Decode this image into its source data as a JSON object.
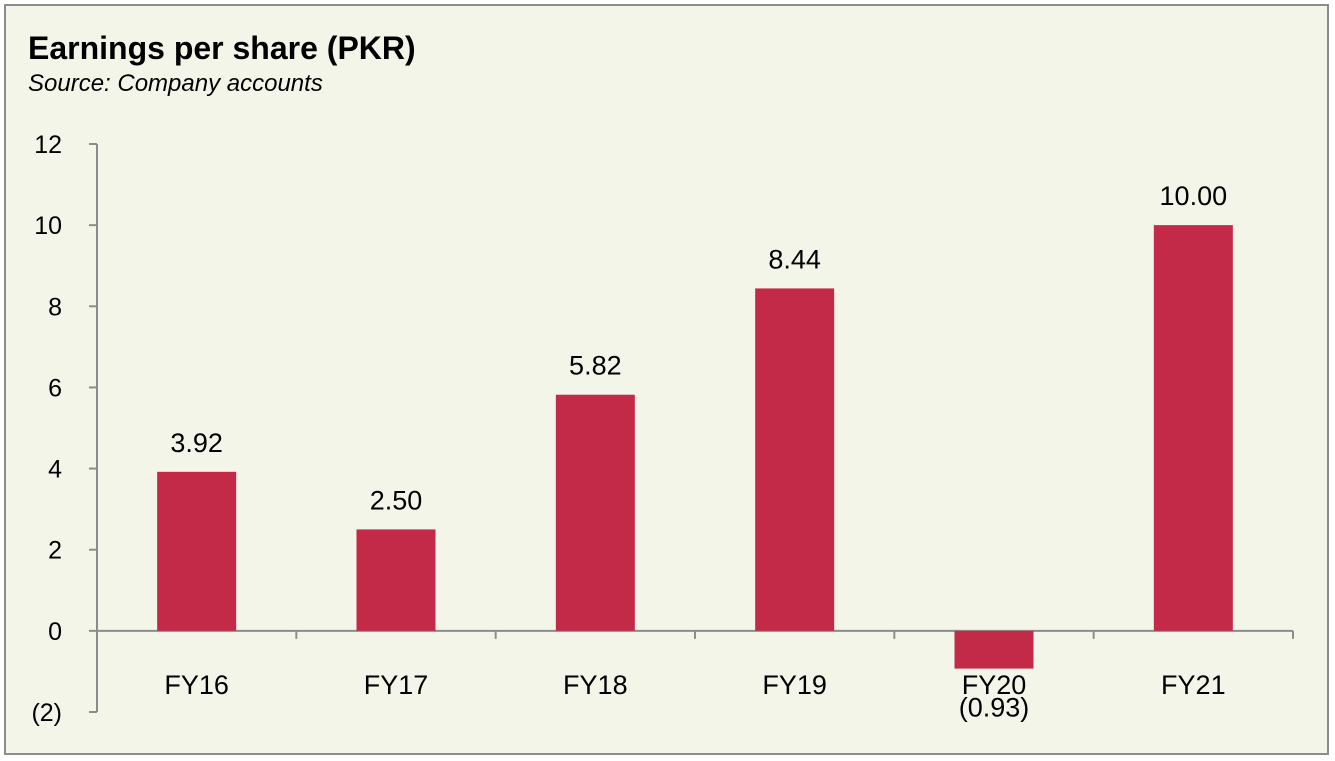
{
  "colors": {
    "bar": "#c22a48",
    "axis": "#8c8c8c",
    "panel": "#f4f5e9"
  },
  "chart_data": {
    "type": "bar",
    "title": "Earnings per share (PKR)",
    "subtitle": "Source: Company accounts",
    "xlabel": "",
    "ylabel": "",
    "categories": [
      "FY16",
      "FY17",
      "FY18",
      "FY19",
      "FY20",
      "FY21"
    ],
    "values": [
      3.92,
      2.5,
      5.82,
      8.44,
      -0.93,
      10.0
    ],
    "data_labels": [
      "3.92",
      "2.50",
      "5.82",
      "8.44",
      "(0.93)",
      "10.00"
    ],
    "ylim": [
      -2,
      12
    ],
    "yticks": [
      -2,
      0,
      2,
      4,
      6,
      8,
      10,
      12
    ],
    "ytick_labels": [
      "(2)",
      "0",
      "2",
      "4",
      "6",
      "8",
      "10",
      "12"
    ],
    "grid": false,
    "legend": "none"
  }
}
